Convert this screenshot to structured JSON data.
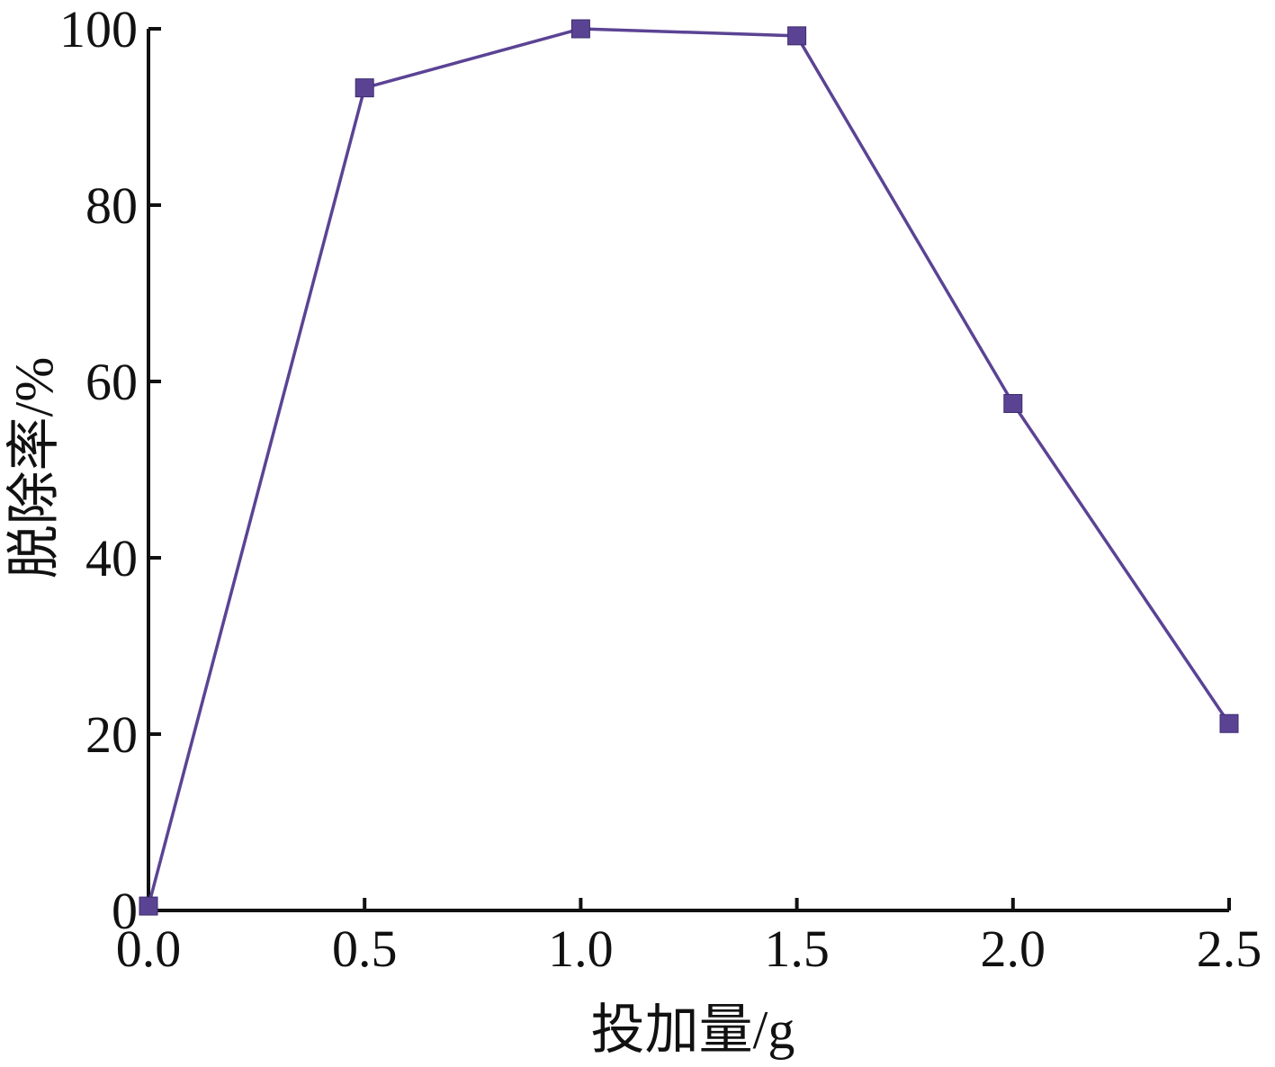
{
  "chart_data": {
    "type": "line",
    "title": "",
    "xlabel": "投加量/g",
    "ylabel": "脱除率/%",
    "xlim": [
      0,
      2.5
    ],
    "ylim": [
      0,
      100
    ],
    "x_ticks": [
      "0.0",
      "0.5",
      "1.0",
      "1.5",
      "2.0",
      "2.5"
    ],
    "y_ticks": [
      "0",
      "20",
      "40",
      "60",
      "80",
      "100"
    ],
    "grid": false,
    "legend": "none",
    "series": [
      {
        "marker": "square",
        "color": "#5b4394",
        "x": [
          0.0,
          0.5,
          1.0,
          1.5,
          2.0,
          2.5
        ],
        "y": [
          0.5,
          93.3,
          100.0,
          99.2,
          57.5,
          21.2
        ]
      }
    ]
  }
}
